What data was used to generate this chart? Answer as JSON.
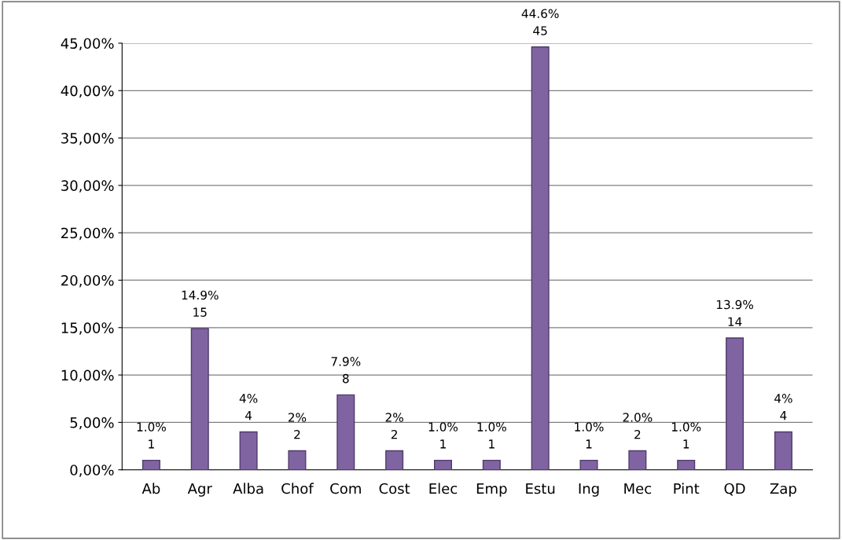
{
  "chart_data": {
    "type": "bar",
    "categories": [
      "Ab",
      "Agr",
      "Alba",
      "Chof",
      "Com",
      "Cost",
      "Elec",
      "Emp",
      "Estu",
      "Ing",
      "Mec",
      "Pint",
      "QD",
      "Zap"
    ],
    "values": [
      1.0,
      14.9,
      4,
      2,
      7.9,
      2,
      1.0,
      1.0,
      44.6,
      1.0,
      2.0,
      1.0,
      13.9,
      4
    ],
    "value_labels": [
      "1.0%\n1",
      "14.9%\n15",
      "4%\n4",
      "2%\n2",
      "7.9%\n8",
      "2%\n2",
      "1.0%\n1",
      "1.0%\n1",
      "44.6%\n45",
      "1.0%\n1",
      "2.0%\n2",
      "1.0%\n1",
      "13.9%\n14",
      "4%\n4"
    ],
    "color": "#8064a2",
    "ylim": [
      0,
      45
    ],
    "yticks": [
      {
        "value": 0,
        "label": "0,00%"
      },
      {
        "value": 5,
        "label": "5,00%"
      },
      {
        "value": 10,
        "label": "10,00%"
      },
      {
        "value": 15,
        "label": "15,00%"
      },
      {
        "value": 20,
        "label": "20,00%"
      },
      {
        "value": 25,
        "label": "25,00%"
      },
      {
        "value": 30,
        "label": "30,00%"
      },
      {
        "value": 35,
        "label": "35,00%"
      },
      {
        "value": 40,
        "label": "40,00%"
      },
      {
        "value": 45,
        "label": "45,00%"
      }
    ],
    "grid": "y",
    "legend": false
  }
}
